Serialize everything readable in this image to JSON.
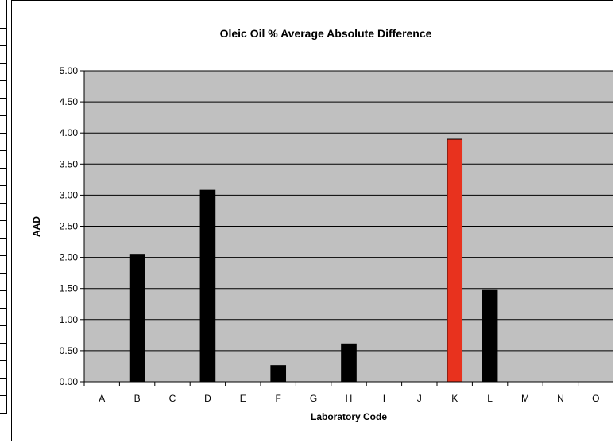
{
  "chart_data": {
    "type": "bar",
    "title": "Oleic Oil % Average Absolute Difference",
    "xlabel": "Laboratory Code",
    "ylabel": "AAD",
    "ylim": [
      0,
      5
    ],
    "ytick_step": 0.5,
    "categories": [
      "A",
      "B",
      "C",
      "D",
      "E",
      "F",
      "G",
      "H",
      "I",
      "J",
      "K",
      "L",
      "M",
      "N",
      "O"
    ],
    "values": [
      0,
      2.05,
      0,
      3.08,
      0,
      0.26,
      0,
      0.61,
      0,
      0,
      3.9,
      1.48,
      0,
      0,
      0
    ],
    "bar_colors": [
      "#000000",
      "#000000",
      "#000000",
      "#000000",
      "#000000",
      "#000000",
      "#000000",
      "#000000",
      "#000000",
      "#000000",
      "#e8321e",
      "#000000",
      "#000000",
      "#000000",
      "#000000"
    ],
    "plot_background": "#c0c0c0",
    "grid": true,
    "legend": "none"
  }
}
